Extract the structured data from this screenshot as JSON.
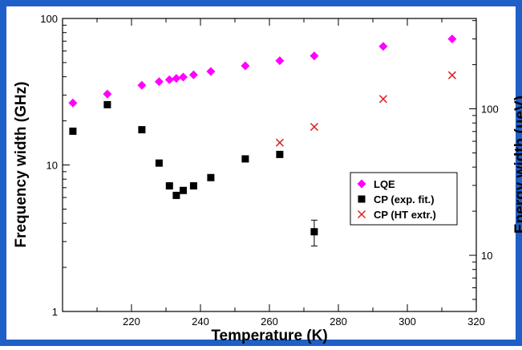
{
  "colors": {
    "border": "#1f5fc8",
    "lqe": "#ff00ff",
    "cp_fit": "#000000",
    "cp_ht": "#e02020"
  },
  "chart_data": {
    "type": "scatter",
    "xlabel": "Temperature (K)",
    "ylabel": "Frequency width (GHz)",
    "ylabel_right": "Energy width (μeV)",
    "xlim": [
      200,
      320
    ],
    "ylim": [
      1,
      100
    ],
    "yscale": "log",
    "ylim_right": [
      4.136,
      413.6
    ],
    "yscale_right": "log",
    "x_ticks": [
      220,
      240,
      260,
      280,
      300,
      320
    ],
    "y_ticks": [
      1,
      10,
      100
    ],
    "y_ticks_right": [
      10,
      100
    ],
    "legend_position": "right-middle",
    "series": [
      {
        "name": "LQE",
        "marker": "diamond",
        "color": "#ff00ff",
        "x": [
          203,
          213,
          223,
          228,
          231,
          233,
          235,
          238,
          243,
          253,
          263,
          273,
          293,
          313
        ],
        "y": [
          26.5,
          30.5,
          35,
          37,
          38.2,
          39,
          39.8,
          41.2,
          43.5,
          47.5,
          51.5,
          55.5,
          64.5,
          72.5
        ]
      },
      {
        "name": "CP (exp. fit.)",
        "marker": "square",
        "color": "#000000",
        "x": [
          203,
          213,
          223,
          228,
          231,
          233,
          235,
          238,
          243,
          253,
          263,
          273
        ],
        "y": [
          17,
          25.8,
          17.4,
          10.3,
          7.2,
          6.2,
          6.7,
          7.2,
          8.2,
          11,
          11.8,
          3.5
        ],
        "err": [
          0.35,
          0.6,
          0.35,
          0.25,
          0.2,
          0.2,
          0.2,
          0.2,
          0.25,
          0.3,
          0.3,
          0.7
        ]
      },
      {
        "name": "CP (HT extr.)",
        "marker": "x",
        "color": "#e02020",
        "x": [
          263,
          273,
          293,
          313
        ],
        "y": [
          14.2,
          18.2,
          28.2,
          41
        ]
      }
    ]
  }
}
